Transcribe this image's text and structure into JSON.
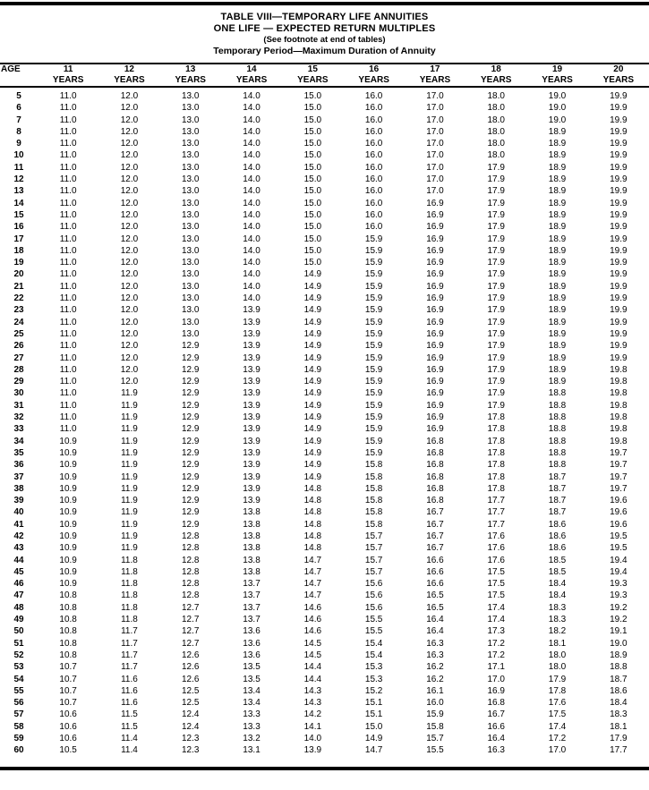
{
  "title": {
    "line1": "TABLE VIII—TEMPORARY LIFE ANNUITIES",
    "line2": "ONE LIFE — EXPECTED RETURN MULTIPLES",
    "line3": "(See footnote at end of tables)",
    "line4": "Temporary Period—Maximum Duration of Annuity"
  },
  "table": {
    "age_header": "AGE",
    "year_label": "YEARS",
    "year_columns": [
      "11",
      "12",
      "13",
      "14",
      "15",
      "16",
      "17",
      "18",
      "19",
      "20"
    ],
    "rows": [
      [
        "5",
        "11.0",
        "12.0",
        "13.0",
        "14.0",
        "15.0",
        "16.0",
        "17.0",
        "18.0",
        "19.0",
        "19.9"
      ],
      [
        "6",
        "11.0",
        "12.0",
        "13.0",
        "14.0",
        "15.0",
        "16.0",
        "17.0",
        "18.0",
        "19.0",
        "19.9"
      ],
      [
        "7",
        "11.0",
        "12.0",
        "13.0",
        "14.0",
        "15.0",
        "16.0",
        "17.0",
        "18.0",
        "19.0",
        "19.9"
      ],
      [
        "8",
        "11.0",
        "12.0",
        "13.0",
        "14.0",
        "15.0",
        "16.0",
        "17.0",
        "18.0",
        "18.9",
        "19.9"
      ],
      [
        "9",
        "11.0",
        "12.0",
        "13.0",
        "14.0",
        "15.0",
        "16.0",
        "17.0",
        "18.0",
        "18.9",
        "19.9"
      ],
      [
        "10",
        "11.0",
        "12.0",
        "13.0",
        "14.0",
        "15.0",
        "16.0",
        "17.0",
        "18.0",
        "18.9",
        "19.9"
      ],
      [
        "11",
        "11.0",
        "12.0",
        "13.0",
        "14.0",
        "15.0",
        "16.0",
        "17.0",
        "17.9",
        "18.9",
        "19.9"
      ],
      [
        "12",
        "11.0",
        "12.0",
        "13.0",
        "14.0",
        "15.0",
        "16.0",
        "17.0",
        "17.9",
        "18.9",
        "19.9"
      ],
      [
        "13",
        "11.0",
        "12.0",
        "13.0",
        "14.0",
        "15.0",
        "16.0",
        "17.0",
        "17.9",
        "18.9",
        "19.9"
      ],
      [
        "14",
        "11.0",
        "12.0",
        "13.0",
        "14.0",
        "15.0",
        "16.0",
        "16.9",
        "17.9",
        "18.9",
        "19.9"
      ],
      [
        "15",
        "11.0",
        "12.0",
        "13.0",
        "14.0",
        "15.0",
        "16.0",
        "16.9",
        "17.9",
        "18.9",
        "19.9"
      ],
      [
        "16",
        "11.0",
        "12.0",
        "13.0",
        "14.0",
        "15.0",
        "16.0",
        "16.9",
        "17.9",
        "18.9",
        "19.9"
      ],
      [
        "17",
        "11.0",
        "12.0",
        "13.0",
        "14.0",
        "15.0",
        "15.9",
        "16.9",
        "17.9",
        "18.9",
        "19.9"
      ],
      [
        "18",
        "11.0",
        "12.0",
        "13.0",
        "14.0",
        "15.0",
        "15.9",
        "16.9",
        "17.9",
        "18.9",
        "19.9"
      ],
      [
        "19",
        "11.0",
        "12.0",
        "13.0",
        "14.0",
        "15.0",
        "15.9",
        "16.9",
        "17.9",
        "18.9",
        "19.9"
      ],
      [
        "20",
        "11.0",
        "12.0",
        "13.0",
        "14.0",
        "14.9",
        "15.9",
        "16.9",
        "17.9",
        "18.9",
        "19.9"
      ],
      [
        "21",
        "11.0",
        "12.0",
        "13.0",
        "14.0",
        "14.9",
        "15.9",
        "16.9",
        "17.9",
        "18.9",
        "19.9"
      ],
      [
        "22",
        "11.0",
        "12.0",
        "13.0",
        "14.0",
        "14.9",
        "15.9",
        "16.9",
        "17.9",
        "18.9",
        "19.9"
      ],
      [
        "23",
        "11.0",
        "12.0",
        "13.0",
        "13.9",
        "14.9",
        "15.9",
        "16.9",
        "17.9",
        "18.9",
        "19.9"
      ],
      [
        "24",
        "11.0",
        "12.0",
        "13.0",
        "13.9",
        "14.9",
        "15.9",
        "16.9",
        "17.9",
        "18.9",
        "19.9"
      ],
      [
        "25",
        "11.0",
        "12.0",
        "13.0",
        "13.9",
        "14.9",
        "15.9",
        "16.9",
        "17.9",
        "18.9",
        "19.9"
      ],
      [
        "26",
        "11.0",
        "12.0",
        "12.9",
        "13.9",
        "14.9",
        "15.9",
        "16.9",
        "17.9",
        "18.9",
        "19.9"
      ],
      [
        "27",
        "11.0",
        "12.0",
        "12.9",
        "13.9",
        "14.9",
        "15.9",
        "16.9",
        "17.9",
        "18.9",
        "19.9"
      ],
      [
        "28",
        "11.0",
        "12.0",
        "12.9",
        "13.9",
        "14.9",
        "15.9",
        "16.9",
        "17.9",
        "18.9",
        "19.8"
      ],
      [
        "29",
        "11.0",
        "12.0",
        "12.9",
        "13.9",
        "14.9",
        "15.9",
        "16.9",
        "17.9",
        "18.9",
        "19.8"
      ],
      [
        "30",
        "11.0",
        "11.9",
        "12.9",
        "13.9",
        "14.9",
        "15.9",
        "16.9",
        "17.9",
        "18.8",
        "19.8"
      ],
      [
        "31",
        "11.0",
        "11.9",
        "12.9",
        "13.9",
        "14.9",
        "15.9",
        "16.9",
        "17.9",
        "18.8",
        "19.8"
      ],
      [
        "32",
        "11.0",
        "11.9",
        "12.9",
        "13.9",
        "14.9",
        "15.9",
        "16.9",
        "17.8",
        "18.8",
        "19.8"
      ],
      [
        "33",
        "11.0",
        "11.9",
        "12.9",
        "13.9",
        "14.9",
        "15.9",
        "16.9",
        "17.8",
        "18.8",
        "19.8"
      ],
      [
        "34",
        "10.9",
        "11.9",
        "12.9",
        "13.9",
        "14.9",
        "15.9",
        "16.8",
        "17.8",
        "18.8",
        "19.8"
      ],
      [
        "35",
        "10.9",
        "11.9",
        "12.9",
        "13.9",
        "14.9",
        "15.9",
        "16.8",
        "17.8",
        "18.8",
        "19.7"
      ],
      [
        "36",
        "10.9",
        "11.9",
        "12.9",
        "13.9",
        "14.9",
        "15.8",
        "16.8",
        "17.8",
        "18.8",
        "19.7"
      ],
      [
        "37",
        "10.9",
        "11.9",
        "12.9",
        "13.9",
        "14.9",
        "15.8",
        "16.8",
        "17.8",
        "18.7",
        "19.7"
      ],
      [
        "38",
        "10.9",
        "11.9",
        "12.9",
        "13.9",
        "14.8",
        "15.8",
        "16.8",
        "17.8",
        "18.7",
        "19.7"
      ],
      [
        "39",
        "10.9",
        "11.9",
        "12.9",
        "13.9",
        "14.8",
        "15.8",
        "16.8",
        "17.7",
        "18.7",
        "19.6"
      ],
      [
        "40",
        "10.9",
        "11.9",
        "12.9",
        "13.8",
        "14.8",
        "15.8",
        "16.7",
        "17.7",
        "18.7",
        "19.6"
      ],
      [
        "41",
        "10.9",
        "11.9",
        "12.9",
        "13.8",
        "14.8",
        "15.8",
        "16.7",
        "17.7",
        "18.6",
        "19.6"
      ],
      [
        "42",
        "10.9",
        "11.9",
        "12.8",
        "13.8",
        "14.8",
        "15.7",
        "16.7",
        "17.6",
        "18.6",
        "19.5"
      ],
      [
        "43",
        "10.9",
        "11.9",
        "12.8",
        "13.8",
        "14.8",
        "15.7",
        "16.7",
        "17.6",
        "18.6",
        "19.5"
      ],
      [
        "44",
        "10.9",
        "11.8",
        "12.8",
        "13.8",
        "14.7",
        "15.7",
        "16.6",
        "17.6",
        "18.5",
        "19.4"
      ],
      [
        "45",
        "10.9",
        "11.8",
        "12.8",
        "13.8",
        "14.7",
        "15.7",
        "16.6",
        "17.5",
        "18.5",
        "19.4"
      ],
      [
        "46",
        "10.9",
        "11.8",
        "12.8",
        "13.7",
        "14.7",
        "15.6",
        "16.6",
        "17.5",
        "18.4",
        "19.3"
      ],
      [
        "47",
        "10.8",
        "11.8",
        "12.8",
        "13.7",
        "14.7",
        "15.6",
        "16.5",
        "17.5",
        "18.4",
        "19.3"
      ],
      [
        "48",
        "10.8",
        "11.8",
        "12.7",
        "13.7",
        "14.6",
        "15.6",
        "16.5",
        "17.4",
        "18.3",
        "19.2"
      ],
      [
        "49",
        "10.8",
        "11.8",
        "12.7",
        "13.7",
        "14.6",
        "15.5",
        "16.4",
        "17.4",
        "18.3",
        "19.2"
      ],
      [
        "50",
        "10.8",
        "11.7",
        "12.7",
        "13.6",
        "14.6",
        "15.5",
        "16.4",
        "17.3",
        "18.2",
        "19.1"
      ],
      [
        "51",
        "10.8",
        "11.7",
        "12.7",
        "13.6",
        "14.5",
        "15.4",
        "16.3",
        "17.2",
        "18.1",
        "19.0"
      ],
      [
        "52",
        "10.8",
        "11.7",
        "12.6",
        "13.6",
        "14.5",
        "15.4",
        "16.3",
        "17.2",
        "18.0",
        "18.9"
      ],
      [
        "53",
        "10.7",
        "11.7",
        "12.6",
        "13.5",
        "14.4",
        "15.3",
        "16.2",
        "17.1",
        "18.0",
        "18.8"
      ],
      [
        "54",
        "10.7",
        "11.6",
        "12.6",
        "13.5",
        "14.4",
        "15.3",
        "16.2",
        "17.0",
        "17.9",
        "18.7"
      ],
      [
        "55",
        "10.7",
        "11.6",
        "12.5",
        "13.4",
        "14.3",
        "15.2",
        "16.1",
        "16.9",
        "17.8",
        "18.6"
      ],
      [
        "56",
        "10.7",
        "11.6",
        "12.5",
        "13.4",
        "14.3",
        "15.1",
        "16.0",
        "16.8",
        "17.6",
        "18.4"
      ],
      [
        "57",
        "10.6",
        "11.5",
        "12.4",
        "13.3",
        "14.2",
        "15.1",
        "15.9",
        "16.7",
        "17.5",
        "18.3"
      ],
      [
        "58",
        "10.6",
        "11.5",
        "12.4",
        "13.3",
        "14.1",
        "15.0",
        "15.8",
        "16.6",
        "17.4",
        "18.1"
      ],
      [
        "59",
        "10.6",
        "11.4",
        "12.3",
        "13.2",
        "14.0",
        "14.9",
        "15.7",
        "16.4",
        "17.2",
        "17.9"
      ],
      [
        "60",
        "10.5",
        "11.4",
        "12.3",
        "13.1",
        "13.9",
        "14.7",
        "15.5",
        "16.3",
        "17.0",
        "17.7"
      ]
    ]
  }
}
